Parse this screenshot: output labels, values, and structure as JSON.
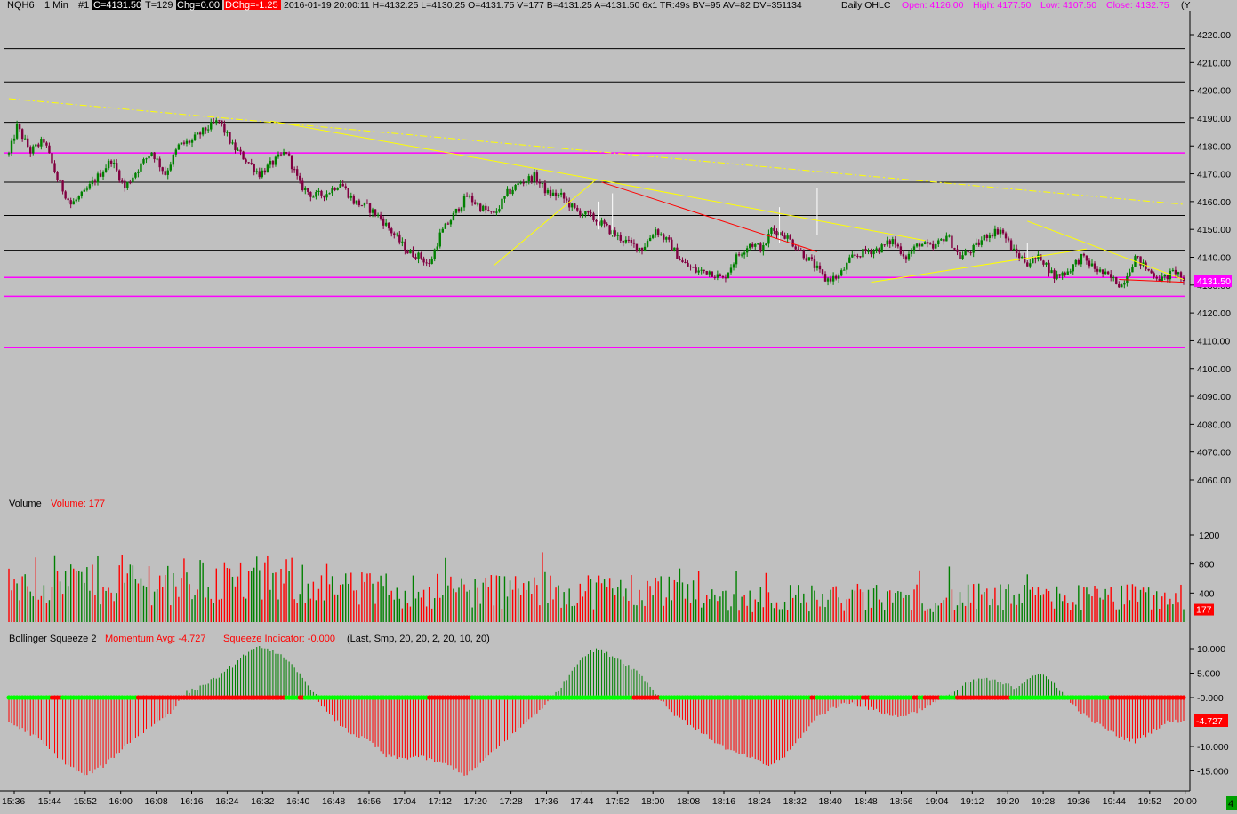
{
  "header": {
    "symbol": "NQH6",
    "interval": "1 Min",
    "chart_no": "#1",
    "close_box": "C=4131.50",
    "ticks": "T=129",
    "chg_box": "Chg=0.00",
    "dchg_box": "DChg=-1.25",
    "details": "2016-01-19 20:00:11 H=4132.25 L=4130.25 O=4131.75 V=177 B=4131.25 A=4131.50 6x1 TR:49s BV=95 AV=82 DV=351134",
    "daily_label": "Daily OHLC",
    "open": "Open: 4126.00",
    "high": "High: 4177.50",
    "low": "Low: 4107.50",
    "close": "Close: 4132.75",
    "clipped": "(Y"
  },
  "colors": {
    "background": "#c0c0c0",
    "up": "#008000",
    "down": "#800040",
    "magenta": "#ff00ff",
    "yellow": "#ffff00",
    "red": "#ff0000",
    "green_dot": "#00ff00",
    "black": "#000000",
    "white": "#ffffff"
  },
  "price_panel": {
    "y_ticks": [
      "4220.00",
      "4210.00",
      "4200.00",
      "4190.00",
      "4180.00",
      "4170.00",
      "4160.00",
      "4150.00",
      "4140.00",
      "4130.00",
      "4120.00",
      "4110.00",
      "4100.00",
      "4090.00",
      "4080.00",
      "4070.00",
      "4060.00"
    ],
    "last_price_label": "4131.50",
    "last_price": 4131.5,
    "horizontal_lines": [
      {
        "price": 4215.0,
        "color": "black"
      },
      {
        "price": 4203.0,
        "color": "black"
      },
      {
        "price": 4188.5,
        "color": "black"
      },
      {
        "price": 4177.5,
        "color": "magenta"
      },
      {
        "price": 4167.0,
        "color": "black"
      },
      {
        "price": 4155.0,
        "color": "black"
      },
      {
        "price": 4142.5,
        "color": "black"
      },
      {
        "price": 4132.75,
        "color": "magenta"
      },
      {
        "price": 4126.0,
        "color": "magenta"
      },
      {
        "price": 4107.5,
        "color": "magenta"
      }
    ],
    "anchor_points": [
      [
        0,
        4177
      ],
      [
        3,
        4187
      ],
      [
        8,
        4178
      ],
      [
        13,
        4182
      ],
      [
        18,
        4168
      ],
      [
        23,
        4159
      ],
      [
        28,
        4163
      ],
      [
        33,
        4169
      ],
      [
        38,
        4175
      ],
      [
        43,
        4165
      ],
      [
        48,
        4172
      ],
      [
        53,
        4178
      ],
      [
        58,
        4170
      ],
      [
        63,
        4180
      ],
      [
        68,
        4182
      ],
      [
        73,
        4186
      ],
      [
        78,
        4189
      ],
      [
        83,
        4180
      ],
      [
        88,
        4175
      ],
      [
        93,
        4170
      ],
      [
        98,
        4174
      ],
      [
        103,
        4178
      ],
      [
        108,
        4166
      ],
      [
        113,
        4162
      ],
      [
        118,
        4163
      ],
      [
        123,
        4167
      ],
      [
        128,
        4160
      ],
      [
        133,
        4158
      ],
      [
        138,
        4154
      ],
      [
        143,
        4148
      ],
      [
        148,
        4142
      ],
      [
        153,
        4140
      ],
      [
        156,
        4137
      ],
      [
        160,
        4148
      ],
      [
        165,
        4155
      ],
      [
        170,
        4162
      ],
      [
        175,
        4158
      ],
      [
        180,
        4155
      ],
      [
        185,
        4163
      ],
      [
        190,
        4167
      ],
      [
        195,
        4169
      ],
      [
        200,
        4163
      ],
      [
        205,
        4162
      ],
      [
        210,
        4157
      ],
      [
        215,
        4155
      ],
      [
        220,
        4152
      ],
      [
        225,
        4148
      ],
      [
        230,
        4145
      ],
      [
        235,
        4143
      ],
      [
        240,
        4150
      ],
      [
        245,
        4145
      ],
      [
        250,
        4138
      ],
      [
        255,
        4135
      ],
      [
        260,
        4135
      ],
      [
        265,
        4132
      ],
      [
        270,
        4140
      ],
      [
        275,
        4145
      ],
      [
        280,
        4143
      ],
      [
        283,
        4150
      ],
      [
        288,
        4148
      ],
      [
        293,
        4143
      ],
      [
        298,
        4138
      ],
      [
        303,
        4132
      ],
      [
        308,
        4133
      ],
      [
        313,
        4140
      ],
      [
        318,
        4142
      ],
      [
        323,
        4143
      ],
      [
        328,
        4146
      ],
      [
        333,
        4140
      ],
      [
        338,
        4145
      ],
      [
        343,
        4143
      ],
      [
        348,
        4148
      ],
      [
        353,
        4140
      ],
      [
        358,
        4143
      ],
      [
        363,
        4148
      ],
      [
        368,
        4150
      ],
      [
        373,
        4142
      ],
      [
        378,
        4138
      ],
      [
        383,
        4140
      ],
      [
        388,
        4133
      ],
      [
        393,
        4135
      ],
      [
        398,
        4140
      ],
      [
        403,
        4136
      ],
      [
        408,
        4133
      ],
      [
        413,
        4130
      ],
      [
        418,
        4140
      ],
      [
        423,
        4135
      ],
      [
        428,
        4132
      ],
      [
        433,
        4135
      ],
      [
        436,
        4132
      ]
    ]
  },
  "volume_panel": {
    "label": "Volume",
    "value_label": "Volume: 177",
    "y_ticks": [
      "1200",
      "800",
      "400"
    ],
    "last_label": "177",
    "last_value": 177
  },
  "squeeze_panel": {
    "label": "Bollinger Squeeze 2",
    "momentum_label": "Momentum Avg: -4.727",
    "squeeze_label": "Squeeze Indicator: -0.000",
    "params": "(Last, Smp, 20, 20, 2, 20, 10, 20)",
    "y_ticks": [
      "10.000",
      "5.000",
      "-0.000",
      "-10.000",
      "-15.000"
    ],
    "last_label": "-4.727",
    "last_value": -4.727
  },
  "x_axis": {
    "labels": [
      "15:36",
      "15:44",
      "15:52",
      "16:00",
      "16:08",
      "16:16",
      "16:24",
      "16:32",
      "16:40",
      "16:48",
      "16:56",
      "17:04",
      "17:12",
      "17:20",
      "17:28",
      "17:36",
      "17:44",
      "17:52",
      "18:00",
      "18:08",
      "18:16",
      "18:24",
      "18:32",
      "18:40",
      "18:48",
      "18:56",
      "19:04",
      "19:12",
      "19:20",
      "19:28",
      "19:36",
      "19:44",
      "19:52",
      "20:00"
    ],
    "corner_badge": "4"
  },
  "chart_data": {
    "type": "candlestick",
    "instrument": "NQH6",
    "interval": "1 Min",
    "x_start": "15:36",
    "x_end": "20:00",
    "bars": 437,
    "price_ylim": [
      4050,
      4225
    ],
    "volume_ylim": [
      0,
      1450
    ],
    "momentum_ylim": [
      -17,
      12
    ],
    "last": {
      "close": 4131.5,
      "volume": 177,
      "momentum_avg": -4.727,
      "squeeze": -0.0
    },
    "daily": {
      "open": 4126.0,
      "high": 4177.5,
      "low": 4107.5,
      "close": 4132.75
    },
    "momentum_anchors": [
      [
        0,
        -5
      ],
      [
        10,
        -8
      ],
      [
        20,
        -13
      ],
      [
        28,
        -16
      ],
      [
        35,
        -14
      ],
      [
        45,
        -9
      ],
      [
        55,
        -5
      ],
      [
        60,
        -3
      ],
      [
        66,
        1
      ],
      [
        72,
        2.5
      ],
      [
        80,
        5
      ],
      [
        88,
        9
      ],
      [
        94,
        10.5
      ],
      [
        100,
        9
      ],
      [
        106,
        6
      ],
      [
        112,
        2
      ],
      [
        118,
        -3
      ],
      [
        126,
        -7
      ],
      [
        134,
        -9
      ],
      [
        140,
        -12
      ],
      [
        146,
        -12.5
      ],
      [
        152,
        -12
      ],
      [
        158,
        -13
      ],
      [
        164,
        -14
      ],
      [
        170,
        -16
      ],
      [
        178,
        -12
      ],
      [
        186,
        -8
      ],
      [
        194,
        -4
      ],
      [
        200,
        -1
      ],
      [
        206,
        3
      ],
      [
        212,
        8
      ],
      [
        218,
        10
      ],
      [
        226,
        8
      ],
      [
        234,
        5
      ],
      [
        240,
        1
      ],
      [
        246,
        -3
      ],
      [
        254,
        -6
      ],
      [
        262,
        -9
      ],
      [
        268,
        -11
      ],
      [
        274,
        -12
      ],
      [
        282,
        -14
      ],
      [
        288,
        -12
      ],
      [
        294,
        -8
      ],
      [
        300,
        -4
      ],
      [
        306,
        -2
      ],
      [
        312,
        -1
      ],
      [
        318,
        -2
      ],
      [
        324,
        -3
      ],
      [
        330,
        -4
      ],
      [
        336,
        -3
      ],
      [
        344,
        -1
      ],
      [
        350,
        1
      ],
      [
        356,
        3
      ],
      [
        362,
        4
      ],
      [
        368,
        3
      ],
      [
        374,
        2
      ],
      [
        378,
        4
      ],
      [
        382,
        5
      ],
      [
        388,
        3
      ],
      [
        394,
        -1
      ],
      [
        400,
        -4
      ],
      [
        406,
        -6
      ],
      [
        412,
        -8
      ],
      [
        418,
        -9
      ],
      [
        424,
        -7
      ],
      [
        430,
        -5
      ],
      [
        436,
        -4.7
      ]
    ],
    "squeeze_red_runs": [
      [
        16,
        19
      ],
      [
        48,
        102
      ],
      [
        108,
        109
      ],
      [
        156,
        171
      ],
      [
        232,
        241
      ],
      [
        298,
        299
      ],
      [
        317,
        319
      ],
      [
        336,
        337
      ],
      [
        340,
        345
      ],
      [
        352,
        371
      ],
      [
        409,
        436
      ]
    ],
    "trendlines": [
      {
        "style": "dash-dot",
        "color": "yellow",
        "from": [
          0,
          4197
        ],
        "to": [
          436,
          4159
        ]
      },
      {
        "color": "yellow",
        "from": [
          97,
          4189
        ],
        "to": [
          218,
          4168
        ]
      },
      {
        "color": "yellow",
        "from": [
          218,
          4168
        ],
        "to": [
          340,
          4146
        ]
      },
      {
        "color": "yellow",
        "from": [
          180,
          4137
        ],
        "to": [
          218,
          4168
        ]
      },
      {
        "color": "yellow",
        "from": [
          320,
          4131
        ],
        "to": [
          400,
          4143
        ]
      },
      {
        "color": "yellow",
        "from": [
          378,
          4153
        ],
        "to": [
          436,
          4132
        ]
      },
      {
        "color": "red",
        "from": [
          220,
          4167
        ],
        "to": [
          300,
          4142
        ]
      },
      {
        "color": "red",
        "from": [
          412,
          4132
        ],
        "to": [
          436,
          4131
        ]
      }
    ]
  }
}
